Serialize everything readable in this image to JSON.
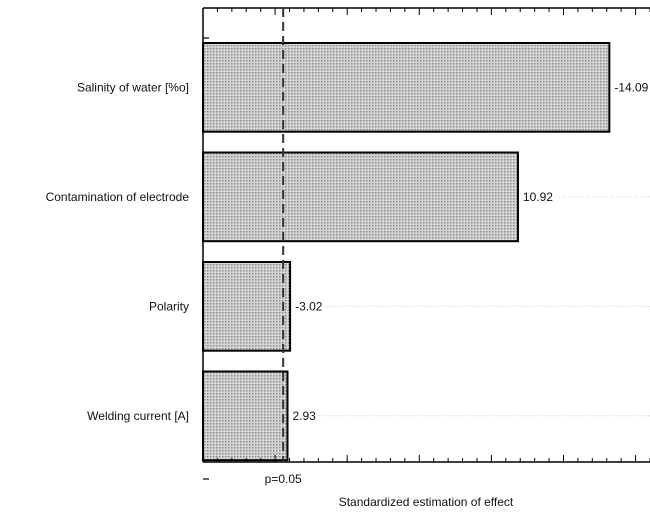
{
  "chart_data": {
    "type": "bar",
    "orientation": "horizontal",
    "title": "",
    "xlabel": "Standardized estimation of effect",
    "ylabel": "",
    "categories": [
      "Salinity of water [%o]",
      "Contamination of electrode",
      "Polarity",
      "Welding current [A]"
    ],
    "values": [
      14.09,
      10.92,
      3.02,
      2.93
    ],
    "value_labels": [
      "-14.09",
      "10.92",
      "-3.02",
      "2.93"
    ],
    "xlim": [
      0,
      15.5
    ],
    "reference_line": {
      "value": 2.78,
      "label": "p=0.05"
    },
    "grid": false,
    "legend": "none",
    "colors": {
      "bar_fill": "#d6d6d6",
      "bar_dot": "#8a8a8a",
      "bar_stroke": "#000000",
      "axis": "#000000",
      "leader_line": "#bdbdbd"
    }
  }
}
